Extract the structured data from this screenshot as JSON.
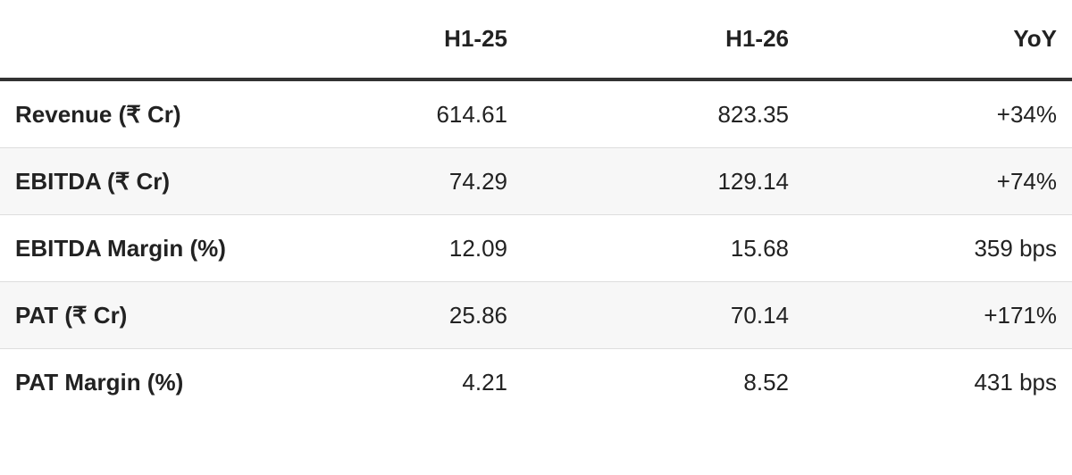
{
  "table": {
    "columns": [
      "H1-25",
      "H1-26",
      "YoY"
    ],
    "rows": [
      [
        "Revenue (₹ Cr)",
        "614.61",
        "823.35",
        "+34%"
      ],
      [
        "EBITDA (₹ Cr)",
        "74.29",
        "129.14",
        "+74%"
      ],
      [
        "EBITDA Margin (%)",
        "12.09",
        "15.68",
        "359 bps"
      ],
      [
        "PAT (₹ Cr)",
        "25.86",
        "70.14",
        "+171%"
      ],
      [
        "PAT Margin (%)",
        "4.21",
        "8.52",
        "431 bps"
      ]
    ]
  }
}
